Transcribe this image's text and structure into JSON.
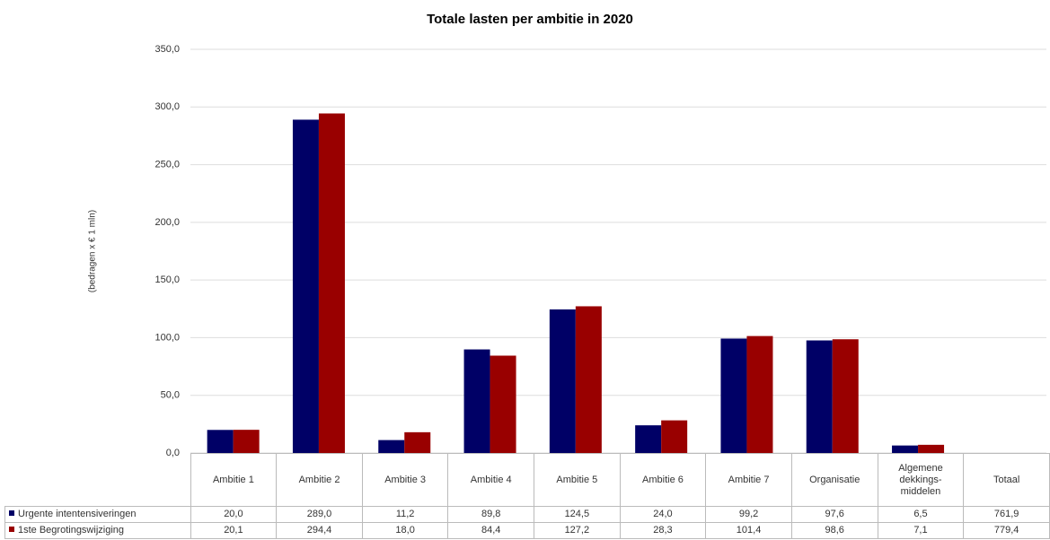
{
  "chart_data": {
    "type": "bar",
    "title": "Totale lasten per ambitie in 2020",
    "y_label": "(bedragen x € 1 mln)",
    "categories": [
      "Ambitie 1",
      "Ambitie 2",
      "Ambitie 3",
      "Ambitie 4",
      "Ambitie 5",
      "Ambitie 6",
      "Ambitie 7",
      "Organisatie",
      "Algemene dekkings-middelen"
    ],
    "series": [
      {
        "name": "Urgente intentensiveringen",
        "color": "#000066",
        "values": [
          20.0,
          289.0,
          11.2,
          89.8,
          124.5,
          24.0,
          99.2,
          97.6,
          6.5
        ],
        "value_labels": [
          "20,0",
          "289,0",
          "11,2",
          "89,8",
          "124,5",
          "24,0",
          "99,2",
          "97,6",
          "6,5"
        ]
      },
      {
        "name": "1ste Begrotingswijziging",
        "color": "#990000",
        "values": [
          20.1,
          294.4,
          18.0,
          84.4,
          127.2,
          28.3,
          101.4,
          98.6,
          7.1
        ],
        "value_labels": [
          "20,1",
          "294,4",
          "18,0",
          "84,4",
          "127,2",
          "28,3",
          "101,4",
          "98,6",
          "7,1"
        ]
      }
    ],
    "total": {
      "label": "Totaal",
      "values": [
        761.9,
        779.4
      ],
      "value_labels": [
        "761,9",
        "779,4"
      ]
    },
    "ylim": [
      0,
      350
    ],
    "yticks": [
      {
        "value": 0,
        "label": "0,0"
      },
      {
        "value": 50,
        "label": "50,0"
      },
      {
        "value": 100,
        "label": "100,0"
      },
      {
        "value": 150,
        "label": "150,0"
      },
      {
        "value": 200,
        "label": "200,0"
      },
      {
        "value": 250,
        "label": "250,0"
      },
      {
        "value": 300,
        "label": "300,0"
      },
      {
        "value": 350,
        "label": "350,0"
      }
    ],
    "grid": true
  }
}
